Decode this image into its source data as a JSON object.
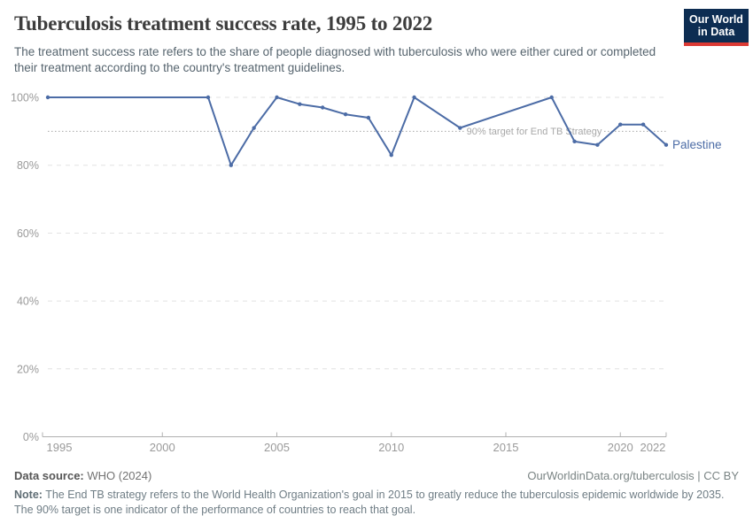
{
  "header": {
    "title": "Tuberculosis treatment success rate, 1995 to 2022",
    "subtitle": "The treatment success rate refers to the share of people diagnosed with tuberculosis who were either cured or completed their treatment according to the country's treatment guidelines.",
    "logo": {
      "line1": "Our World",
      "line2": "in Data",
      "bg_color": "#0d2d52",
      "stripe_color": "#dc3a34"
    }
  },
  "chart_data": {
    "type": "line",
    "title": "Tuberculosis treatment success rate, 1995 to 2022",
    "entity": "Palestine",
    "unit": "%",
    "xlim": [
      1995,
      2022
    ],
    "ylim": [
      0,
      100
    ],
    "x_ticks": [
      1995,
      2000,
      2005,
      2010,
      2015,
      2020,
      2022
    ],
    "y_ticks": [
      0,
      20,
      40,
      60,
      80,
      100
    ],
    "grid": "horizontal-dashed",
    "legend_position": "end-of-line-label",
    "target_line": {
      "value": 90,
      "label": "90% target for End TB Strategy"
    },
    "series": [
      {
        "name": "Palestine",
        "color": "#4c6ca6",
        "points": [
          [
            1995,
            100
          ],
          [
            2002,
            100
          ],
          [
            2003,
            80
          ],
          [
            2004,
            91
          ],
          [
            2005,
            100
          ],
          [
            2006,
            98
          ],
          [
            2007,
            97
          ],
          [
            2008,
            95
          ],
          [
            2009,
            94
          ],
          [
            2010,
            83
          ],
          [
            2011,
            100
          ],
          [
            2013,
            91
          ],
          [
            2017,
            100
          ],
          [
            2018,
            87
          ],
          [
            2019,
            86
          ],
          [
            2020,
            92
          ],
          [
            2021,
            92
          ],
          [
            2022,
            86
          ]
        ]
      }
    ]
  },
  "footer": {
    "datasource_label": "Data source:",
    "datasource_value": " WHO (2024)",
    "credit": "OurWorldinData.org/tuberculosis | CC BY",
    "note_label": "Note:",
    "note_text": " The End TB strategy refers to the World Health Organization's goal in 2015 to greatly reduce the tuberculosis epidemic worldwide by 2035. The 90% target is one indicator of the performance of countries to reach that goal."
  },
  "colors": {
    "line_blue": "#4c6ca6",
    "grid": "#e2e2e2",
    "axis": "#b0b0b0",
    "tick_label": "#9a9a9a",
    "target_gray": "#a8a8a8",
    "title_text": "#3d3d3d",
    "subtitle_text": "#56646e",
    "logo_navy": "#0d2d52",
    "logo_red": "#dc3a34"
  }
}
